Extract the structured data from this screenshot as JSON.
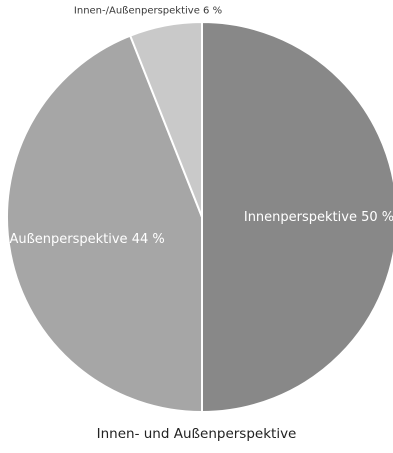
{
  "chart_data": {
    "type": "pie",
    "title": "Innen- und Außenperspektive",
    "slices": [
      {
        "label": "Innenperspektive 50 %",
        "value": 50,
        "color": "#888888",
        "placement": "inside"
      },
      {
        "label": "Außenperspektive 44 %",
        "value": 44,
        "color": "#a6a6a6",
        "placement": "inside"
      },
      {
        "label": "Innen-/Außenperspektive 6 %",
        "value": 6,
        "color": "#c9c9c9",
        "placement": "outside"
      }
    ],
    "legend": "none"
  }
}
